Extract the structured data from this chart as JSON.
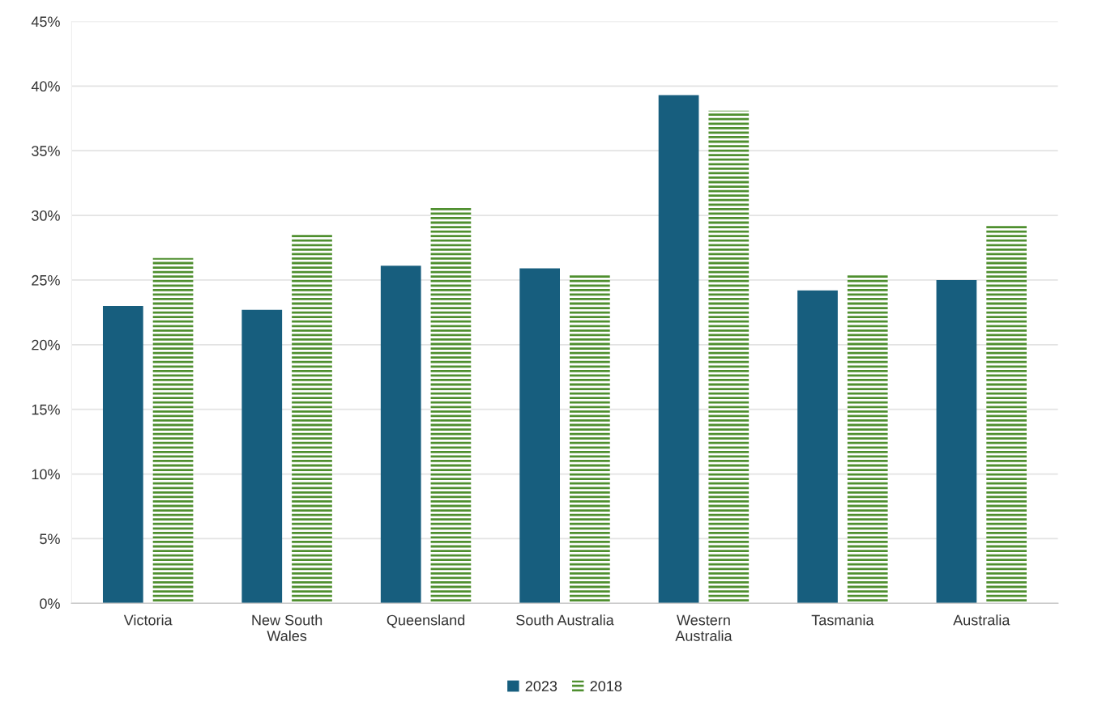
{
  "chart_data": {
    "type": "bar",
    "categories": [
      "Victoria",
      "New South\nWales",
      "Queensland",
      "South Australia",
      "Western\nAustralia",
      "Tasmania",
      "Australia"
    ],
    "series": [
      {
        "name": "2023",
        "color": "#175e7e",
        "values": [
          23.0,
          22.7,
          26.1,
          25.9,
          39.3,
          24.2,
          25.0
        ]
      },
      {
        "name": "2018",
        "color": "#4f8f2f",
        "values": [
          26.7,
          28.5,
          30.7,
          25.4,
          38.1,
          25.4,
          29.2
        ]
      }
    ],
    "ylim": [
      0,
      45
    ],
    "yticks": [
      {
        "value": 0,
        "label": "0%"
      },
      {
        "value": 5,
        "label": "5%"
      },
      {
        "value": 10,
        "label": "10%"
      },
      {
        "value": 15,
        "label": "15%"
      },
      {
        "value": 20,
        "label": "20%"
      },
      {
        "value": 25,
        "label": "25%"
      },
      {
        "value": 30,
        "label": "30%"
      },
      {
        "value": 35,
        "label": "35%"
      },
      {
        "value": 40,
        "label": "40%"
      },
      {
        "value": 45,
        "label": "45%"
      }
    ],
    "grid": "y",
    "legend": "bottom"
  }
}
